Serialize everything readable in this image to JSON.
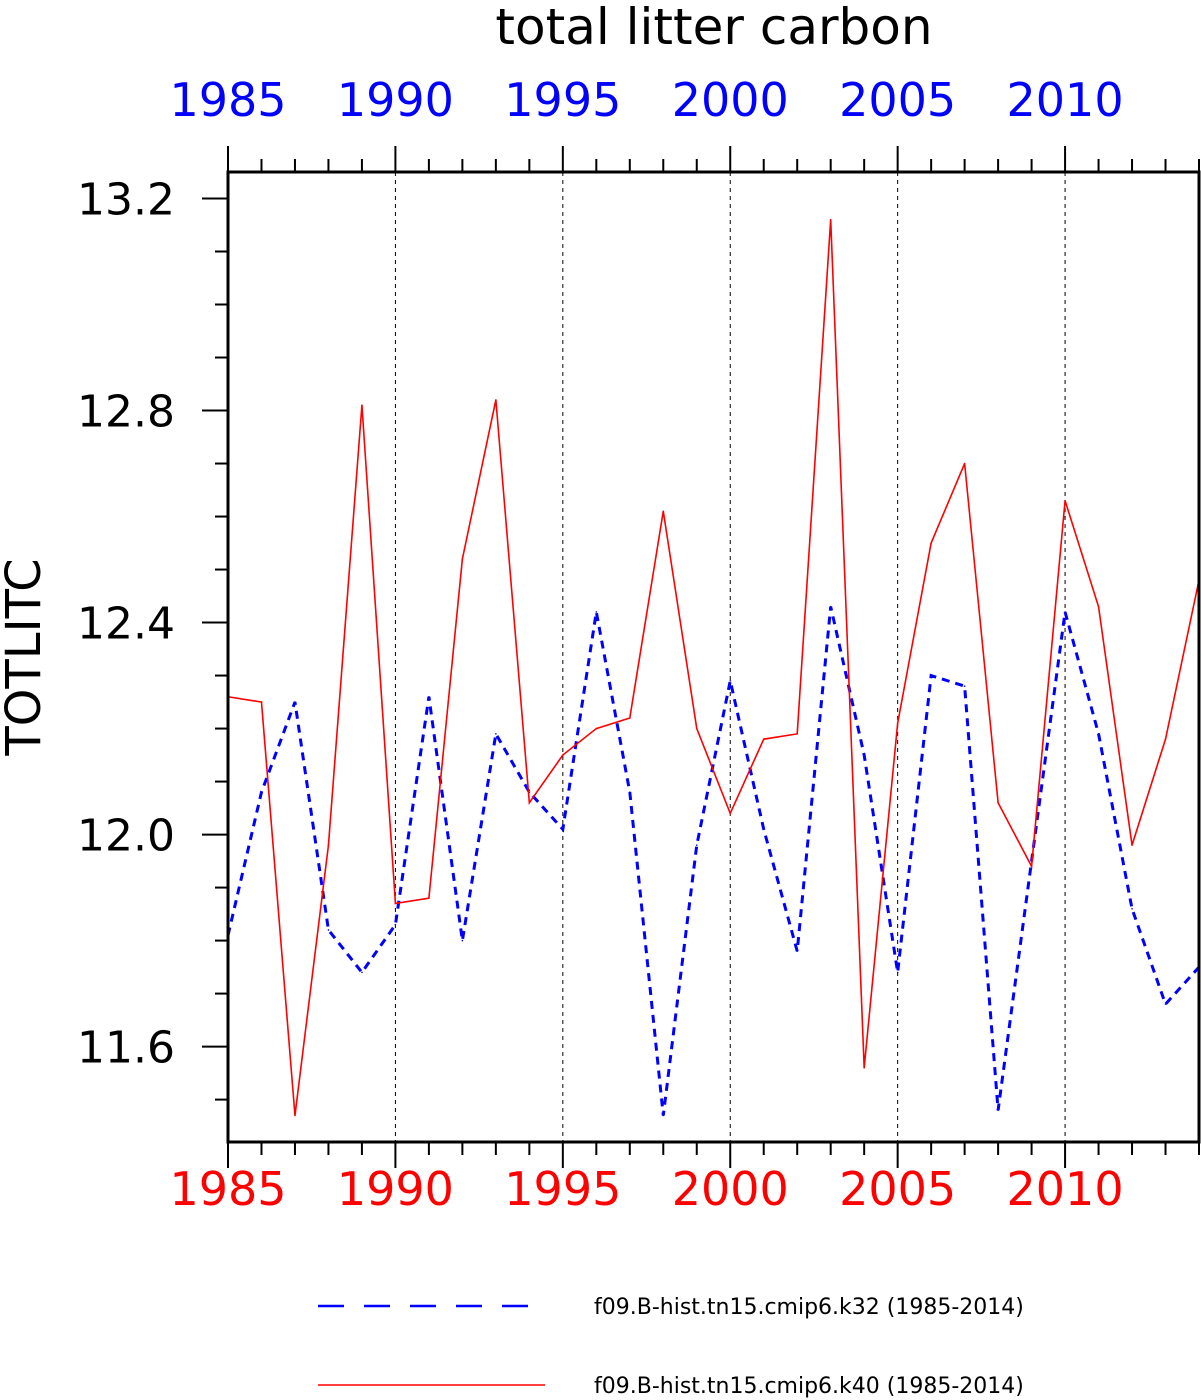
{
  "chart_data": {
    "type": "line",
    "title": "total litter carbon",
    "ylabel": "TOTLITC",
    "xlabel": "",
    "xlim": [
      1985,
      2014
    ],
    "ylim": [
      11.42,
      13.25
    ],
    "x_ticks": [
      "1985",
      "1990",
      "1995",
      "2000",
      "2005",
      "2010"
    ],
    "y_ticks": [
      "11.6",
      "12.0",
      "12.4",
      "12.8",
      "13.2"
    ],
    "top_axis_color": "#0000ff",
    "bottom_axis_color": "#ff0000",
    "grid": "vertical dashed at major x ticks",
    "legend_position": "bottom",
    "x": [
      1985,
      1986,
      1987,
      1988,
      1989,
      1990,
      1991,
      1992,
      1993,
      1994,
      1995,
      1996,
      1997,
      1998,
      1999,
      2000,
      2001,
      2002,
      2003,
      2004,
      2005,
      2006,
      2007,
      2008,
      2009,
      2010,
      2011,
      2012,
      2013,
      2014
    ],
    "series": [
      {
        "name": "f09.B-hist.tn15.cmip6.k32 (1985-2014)",
        "color": "#0000ff",
        "style": "dashed",
        "values": [
          11.81,
          12.08,
          12.25,
          11.82,
          11.74,
          11.83,
          12.26,
          11.8,
          12.19,
          12.08,
          12.01,
          12.42,
          12.08,
          11.47,
          11.98,
          12.29,
          12.01,
          11.78,
          12.43,
          12.15,
          11.74,
          12.3,
          12.28,
          11.48,
          11.95,
          12.42,
          12.19,
          11.86,
          11.68,
          11.75
        ]
      },
      {
        "name": "f09.B-hist.tn15.cmip6.k40 (1985-2014)",
        "color": "#ff0000",
        "style": "solid",
        "values": [
          12.26,
          12.25,
          11.47,
          11.98,
          12.81,
          11.87,
          11.88,
          12.52,
          12.82,
          12.06,
          12.15,
          12.2,
          12.22,
          12.61,
          12.2,
          12.04,
          12.18,
          12.19,
          13.16,
          11.56,
          12.21,
          12.55,
          12.7,
          12.06,
          11.94,
          12.63,
          12.43,
          11.98,
          12.18,
          12.48
        ]
      }
    ]
  }
}
